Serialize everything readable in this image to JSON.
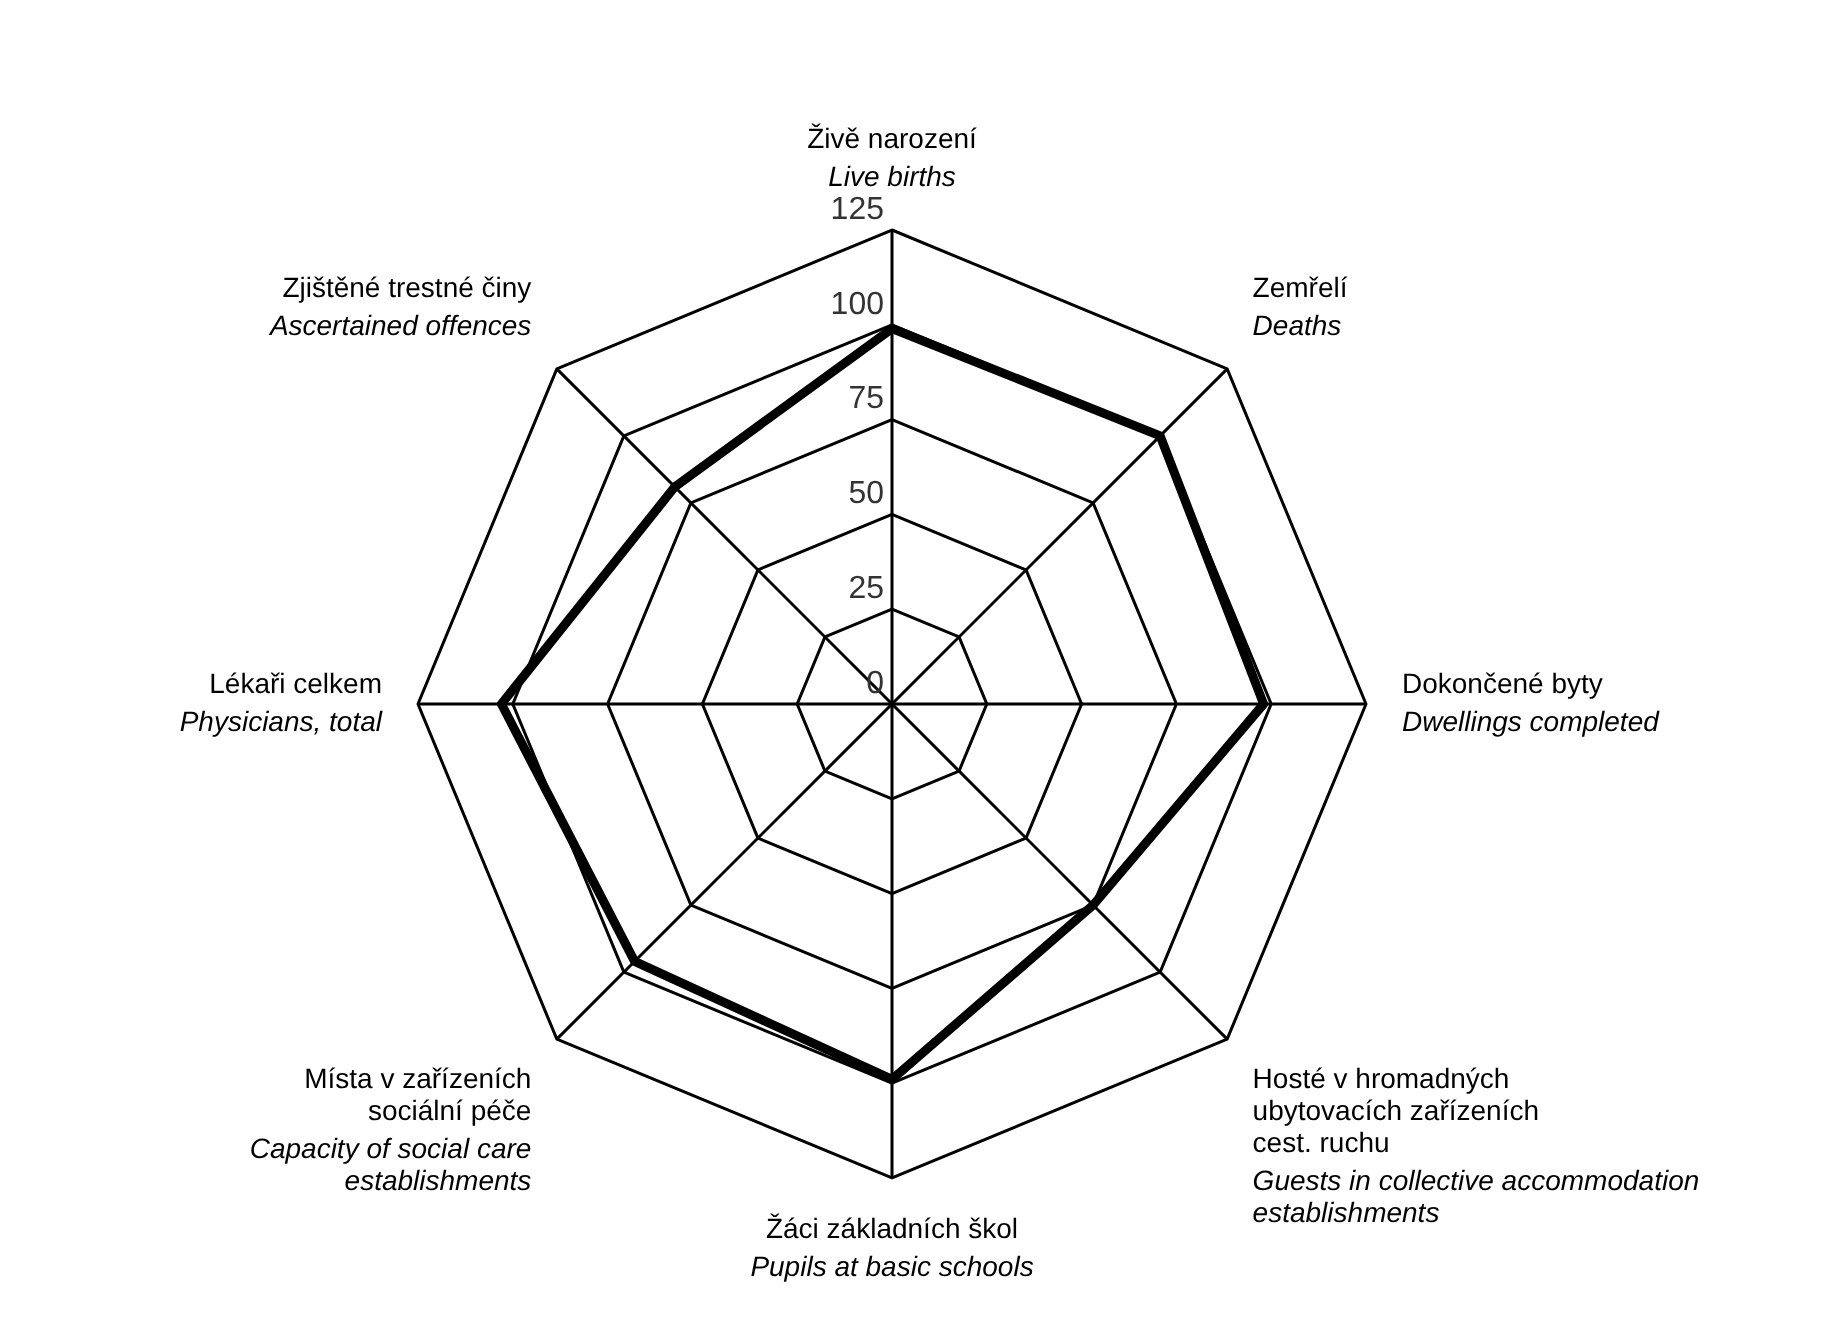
{
  "chart_data": {
    "type": "radar",
    "categories": [
      "Živě narození\n\nLive births",
      "Zemřelí\n\nDeaths",
      "Dokončené byty\n\nDwellings completed",
      "Hosté v hromadných\nubytovacích zařízeních\ncest. ruchu\n\nGuests in collective accommodation\nestablishments",
      "Žáci základních škol\n\nPupils at basic schools",
      "Místa v zařízeních\nsociální péče\n\nCapacity of social care\nestablishments",
      "Lékaři celkem\n\nPhysicians, total",
      "Zjištěné trestné činy\n\nAscertained offences"
    ],
    "series": [
      {
        "color": "#000000",
        "values": [
          99,
          100,
          98,
          75,
          99,
          96,
          103,
          81
        ]
      }
    ],
    "ylim": [
      0,
      125
    ],
    "yticks": [
      0,
      25,
      50,
      75,
      100,
      125
    ],
    "grid": true,
    "marker": "none"
  }
}
